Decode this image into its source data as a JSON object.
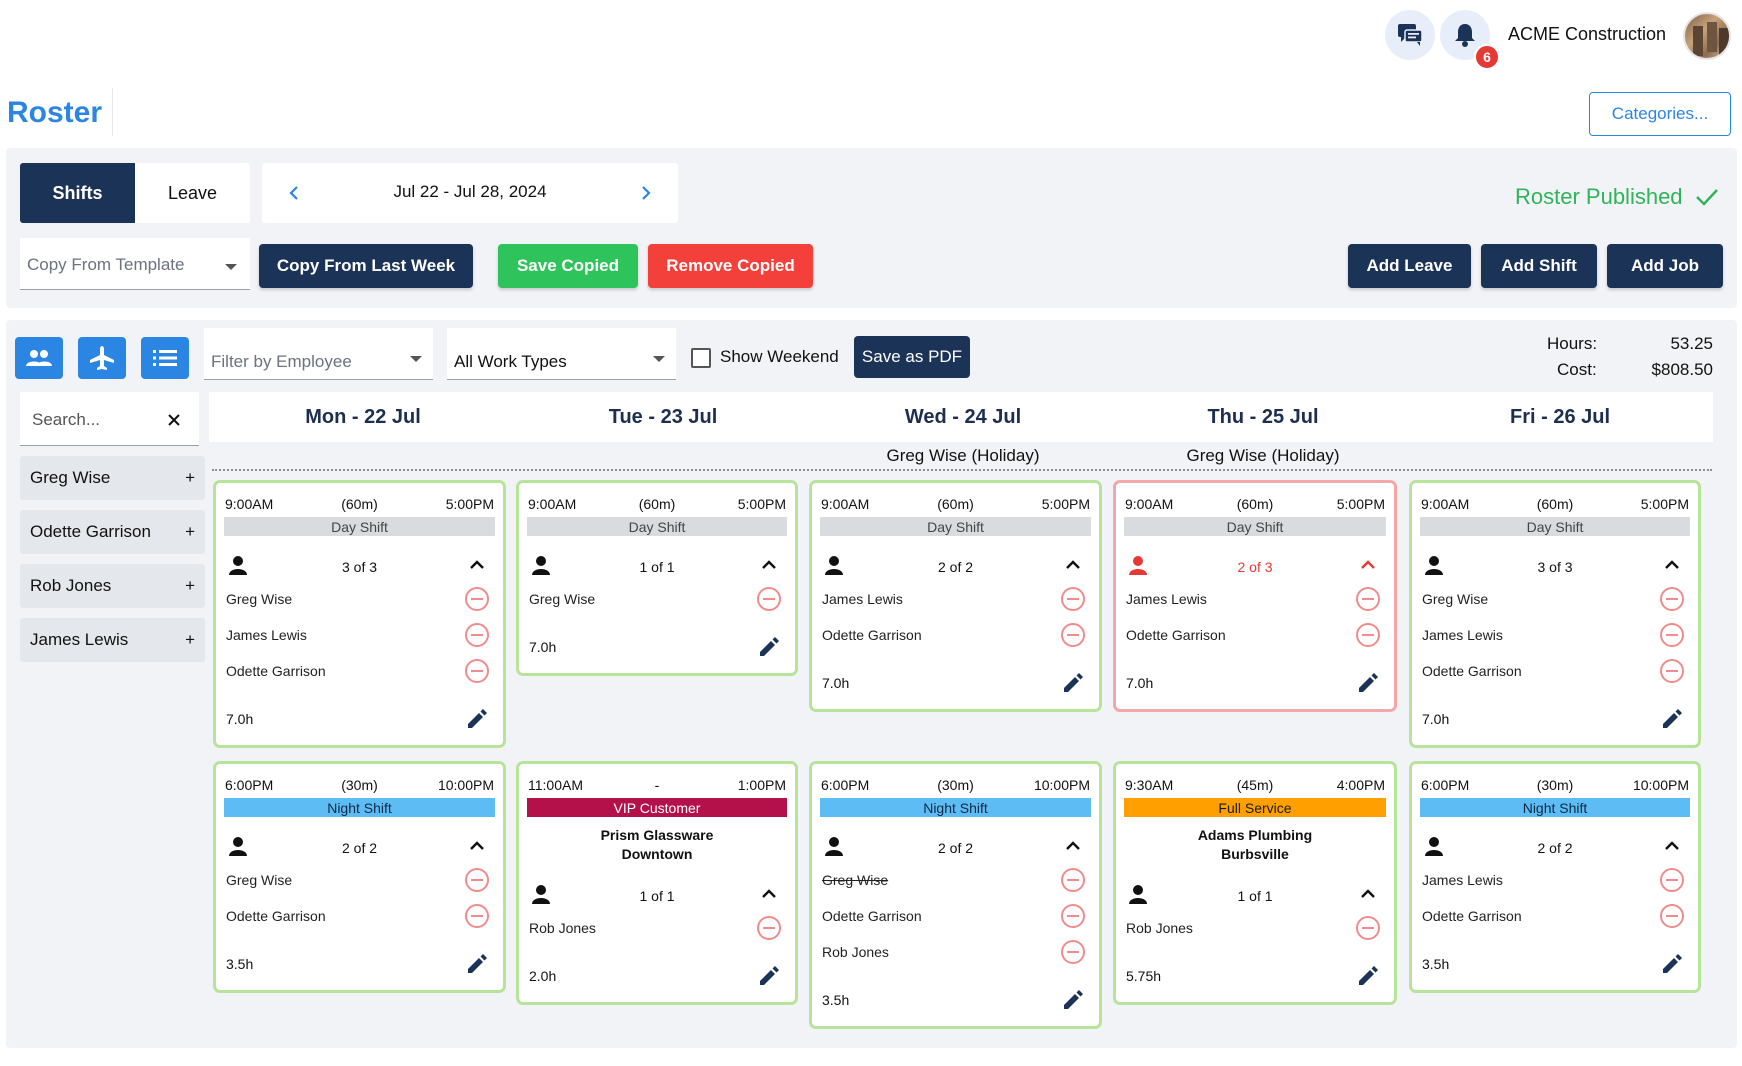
{
  "header": {
    "company": "ACME Construction",
    "notification_count": "6",
    "page_title": "Roster",
    "categories_label": "Categories..."
  },
  "toolbar": {
    "tabs": [
      {
        "label": "Shifts",
        "active": true
      },
      {
        "label": "Leave",
        "active": false
      }
    ],
    "week_range": "Jul 22 - Jul 28, 2024",
    "published_label": "Roster Published",
    "template_placeholder": "Copy From Template",
    "copy_last_week": "Copy From Last Week",
    "save_copied": "Save Copied",
    "remove_copied": "Remove Copied",
    "add_leave": "Add Leave",
    "add_shift": "Add Shift",
    "add_job": "Add Job"
  },
  "filters": {
    "employee_placeholder": "Filter by Employee",
    "work_types_value": "All Work Types",
    "show_weekend_label": "Show Weekend",
    "save_pdf": "Save as PDF",
    "hours_label": "Hours:",
    "hours_value": "53.25",
    "cost_label": "Cost:",
    "cost_value": "$808.50"
  },
  "sidebar": {
    "search_placeholder": "Search...",
    "employees": [
      "Greg Wise",
      "Odette Garrison",
      "Rob Jones",
      "James Lewis"
    ],
    "plus": "+"
  },
  "days": [
    {
      "label": "Mon - 22 Jul",
      "holiday": ""
    },
    {
      "label": "Tue - 23 Jul",
      "holiday": ""
    },
    {
      "label": "Wed - 24 Jul",
      "holiday": "Greg Wise (Holiday)"
    },
    {
      "label": "Thu - 25 Jul",
      "holiday": "Greg Wise (Holiday)"
    },
    {
      "label": "Fri - 26 Jul",
      "holiday": ""
    }
  ],
  "colors": {
    "navy": "#1c3358",
    "blue": "#2b86e3",
    "green": "#2fc35c",
    "red": "#f4403a",
    "day_shift": "#d9dbde",
    "night_shift": "#5ebcf5",
    "vip_customer": "#b4104a",
    "full_service": "#ffa000",
    "card_border_ok": "#b7e39a",
    "card_border_warn": "#f4a7a7"
  },
  "shifts": [
    {
      "start": "9:00AM",
      "brk": "(60m)",
      "end": "5:00PM",
      "type": "Day Shift",
      "count": "3 of 3",
      "people": [
        {
          "name": "Greg Wise"
        },
        {
          "name": "James Lewis"
        },
        {
          "name": "Odette Garrison"
        }
      ],
      "hours": "7.0h"
    },
    {
      "start": "9:00AM",
      "brk": "(60m)",
      "end": "5:00PM",
      "type": "Day Shift",
      "count": "1 of 1",
      "people": [
        {
          "name": "Greg Wise"
        }
      ],
      "hours": "7.0h"
    },
    {
      "start": "9:00AM",
      "brk": "(60m)",
      "end": "5:00PM",
      "type": "Day Shift",
      "count": "2 of 2",
      "people": [
        {
          "name": "James Lewis"
        },
        {
          "name": "Odette Garrison"
        }
      ],
      "hours": "7.0h"
    },
    {
      "start": "9:00AM",
      "brk": "(60m)",
      "end": "5:00PM",
      "type": "Day Shift",
      "count": "2 of 3",
      "people": [
        {
          "name": "James Lewis"
        },
        {
          "name": "Odette Garrison"
        }
      ],
      "hours": "7.0h",
      "understaffed": true
    },
    {
      "start": "9:00AM",
      "brk": "(60m)",
      "end": "5:00PM",
      "type": "Day Shift",
      "count": "3 of 3",
      "people": [
        {
          "name": "Greg Wise"
        },
        {
          "name": "James Lewis"
        },
        {
          "name": "Odette Garrison"
        }
      ],
      "hours": "7.0h"
    },
    {
      "start": "6:00PM",
      "brk": "(30m)",
      "end": "10:00PM",
      "type": "Night Shift",
      "count": "2 of 2",
      "people": [
        {
          "name": "Greg Wise"
        },
        {
          "name": "Odette Garrison"
        }
      ],
      "hours": "3.5h"
    },
    {
      "start": "11:00AM",
      "brk": "-",
      "end": "1:00PM",
      "type": "VIP Customer",
      "client_line1": "Prism Glassware",
      "client_line2": "Downtown",
      "count": "1 of 1",
      "people": [
        {
          "name": "Rob Jones"
        }
      ],
      "hours": "2.0h"
    },
    {
      "start": "6:00PM",
      "brk": "(30m)",
      "end": "10:00PM",
      "type": "Night Shift",
      "count": "2 of 2",
      "people": [
        {
          "name": "Greg Wise",
          "struck": true
        },
        {
          "name": "Odette Garrison"
        },
        {
          "name": "Rob Jones"
        }
      ],
      "hours": "3.5h"
    },
    {
      "start": "9:30AM",
      "brk": "(45m)",
      "end": "4:00PM",
      "type": "Full Service",
      "client_line1": "Adams Plumbing",
      "client_line2": "Burbsville",
      "count": "1 of 1",
      "people": [
        {
          "name": "Rob Jones"
        }
      ],
      "hours": "5.75h"
    },
    {
      "start": "6:00PM",
      "brk": "(30m)",
      "end": "10:00PM",
      "type": "Night Shift",
      "count": "2 of 2",
      "people": [
        {
          "name": "James Lewis"
        },
        {
          "name": "Odette Garrison"
        }
      ],
      "hours": "3.5h"
    }
  ]
}
